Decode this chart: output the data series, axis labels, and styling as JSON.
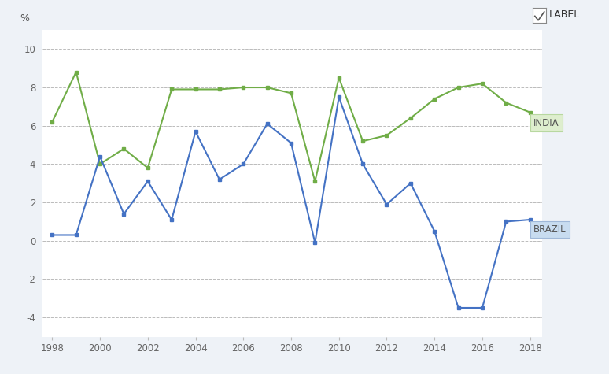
{
  "years": [
    1998,
    1999,
    2000,
    2001,
    2002,
    2003,
    2004,
    2005,
    2006,
    2007,
    2008,
    2009,
    2010,
    2011,
    2012,
    2013,
    2014,
    2015,
    2016,
    2017,
    2018
  ],
  "brazil": [
    0.3,
    0.3,
    4.4,
    1.4,
    3.1,
    1.1,
    5.7,
    3.2,
    4.0,
    6.1,
    5.1,
    -0.1,
    7.5,
    4.0,
    1.9,
    3.0,
    0.5,
    -3.5,
    -3.5,
    1.0,
    1.1
  ],
  "india": [
    6.2,
    8.8,
    4.0,
    4.8,
    3.8,
    7.9,
    7.9,
    7.9,
    8.0,
    8.0,
    7.7,
    3.1,
    8.5,
    5.2,
    5.5,
    6.4,
    7.4,
    8.0,
    8.2,
    7.2,
    6.7
  ],
  "brazil_color": "#4472c4",
  "india_color": "#70ad47",
  "background_color": "#eef2f7",
  "plot_bg_color": "#ffffff",
  "grid_color": "#bbbbbb",
  "ylim": [
    -5,
    11
  ],
  "yticks": [
    -4,
    -2,
    0,
    2,
    4,
    6,
    8,
    10
  ],
  "pct_label": "%",
  "india_label": "INDIA",
  "brazil_label": "BRAZIL",
  "legend_label": "LABEL",
  "india_box_facecolor": "#deeece",
  "india_box_edgecolor": "#b8d8a0",
  "brazil_box_facecolor": "#c8dcf0",
  "brazil_box_edgecolor": "#a0b8d8"
}
